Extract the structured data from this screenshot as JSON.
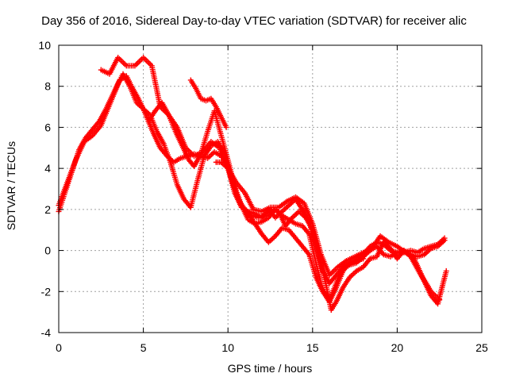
{
  "chart_data": {
    "type": "scatter",
    "title": "Day 356 of 2016, Sidereal Day-to-day VTEC variation (SDTVAR) for receiver alic",
    "xlabel": "GPS time / hours",
    "ylabel": "SDTVAR / TECUs",
    "xlim": [
      0,
      25
    ],
    "ylim": [
      -4,
      10
    ],
    "xticks": [
      "0",
      "5",
      "10",
      "15",
      "20",
      "25"
    ],
    "yticks": [
      "-4",
      "-2",
      "0",
      "2",
      "4",
      "6",
      "8",
      "10"
    ],
    "grid": true,
    "marker": "plus",
    "color": "#ff0000",
    "series": [
      {
        "x": [
          0.0,
          0.4,
          0.8,
          1.2,
          1.6,
          2.0,
          2.4,
          2.8,
          3.2,
          3.6,
          4.0,
          4.3,
          4.7,
          5.0,
          5.3,
          5.6,
          6.0,
          6.4,
          6.8,
          7.2,
          7.6,
          8.0,
          8.4,
          8.8,
          9.2,
          9.6,
          10.0,
          10.4,
          10.8,
          11.2,
          11.6,
          12.0,
          12.4,
          12.8,
          13.2,
          13.6,
          14.0,
          14.4,
          14.8,
          15.2,
          15.6,
          16.0,
          16.4,
          16.8,
          17.2,
          17.6,
          18.0,
          18.4,
          18.8,
          19.2,
          19.6,
          20.0,
          20.4,
          20.8,
          21.2,
          21.6,
          22.0,
          22.4,
          22.8
        ],
        "y": [
          1.9,
          2.9,
          3.9,
          4.9,
          5.5,
          5.9,
          6.3,
          6.9,
          7.6,
          8.3,
          8.5,
          8.0,
          7.4,
          6.9,
          6.3,
          5.7,
          5.0,
          4.6,
          4.3,
          4.5,
          4.6,
          4.7,
          4.6,
          4.5,
          4.8,
          4.6,
          4.2,
          3.0,
          2.2,
          1.5,
          1.3,
          1.4,
          1.6,
          2.0,
          1.7,
          1.5,
          1.3,
          1.2,
          0.8,
          -0.6,
          -1.9,
          -2.4,
          -1.6,
          -0.9,
          -0.7,
          -0.6,
          -0.3,
          0.0,
          0.2,
          -0.2,
          -0.3,
          -0.1,
          0.0,
          -0.2,
          -0.3,
          -0.2,
          0.1,
          0.2,
          0.5
        ]
      },
      {
        "x": [
          0.0,
          0.5,
          1.0,
          1.5,
          2.0,
          2.5,
          3.0,
          3.5,
          3.8,
          4.2,
          4.6,
          5.0,
          5.4,
          5.8,
          6.2,
          6.6,
          7.0,
          7.4,
          7.8,
          8.2,
          8.6,
          9.0,
          9.4,
          9.8,
          10.2,
          10.6,
          11.0,
          11.4,
          11.8,
          12.2,
          12.6,
          13.0,
          13.4,
          13.8,
          14.2,
          14.6,
          15.0,
          15.4,
          15.8,
          16.1,
          16.4,
          16.8,
          17.2,
          17.6,
          18.0,
          18.4,
          18.8,
          19.2,
          19.6,
          20.0,
          20.4,
          20.8,
          21.2,
          21.6,
          22.0,
          22.4,
          22.9
        ],
        "y": [
          2.2,
          3.3,
          4.4,
          5.3,
          5.6,
          6.1,
          7.1,
          8.1,
          8.6,
          8.0,
          7.2,
          6.9,
          6.6,
          5.8,
          5.2,
          4.3,
          3.2,
          2.5,
          2.1,
          3.4,
          4.6,
          5.1,
          5.3,
          4.7,
          3.5,
          2.5,
          2.0,
          1.7,
          1.6,
          1.7,
          2.0,
          1.9,
          1.2,
          1.6,
          1.9,
          1.6,
          1.0,
          -0.3,
          -1.7,
          -2.9,
          -2.5,
          -1.8,
          -1.3,
          -1.0,
          -0.8,
          -0.4,
          -0.3,
          0.4,
          0.1,
          -0.4,
          0.0,
          -0.3,
          -0.9,
          -1.5,
          -2.2,
          -2.6,
          -1.0
        ]
      },
      {
        "x": [
          2.5,
          3.0,
          3.5,
          4.0,
          4.5,
          5.0,
          5.5,
          6.0,
          6.5,
          7.0,
          7.5,
          8.0,
          8.5,
          9.0,
          9.5,
          10.0,
          10.5,
          11.0,
          11.5,
          12.0,
          12.5,
          13.0,
          13.5,
          14.0,
          14.5,
          15.0,
          15.5,
          16.0,
          16.5,
          17.0,
          17.5,
          18.0,
          18.5,
          19.0,
          19.5,
          20.0,
          20.5,
          21.0,
          21.5,
          22.0,
          22.5
        ],
        "y": [
          8.8,
          8.6,
          9.4,
          9.0,
          9.0,
          9.4,
          9.0,
          7.0,
          6.6,
          6.0,
          5.0,
          4.6,
          4.8,
          5.3,
          5.0,
          4.0,
          3.3,
          2.8,
          2.0,
          1.9,
          2.1,
          2.1,
          2.4,
          2.6,
          2.3,
          1.3,
          -0.2,
          -1.2,
          -0.8,
          -0.5,
          -0.3,
          -0.1,
          0.1,
          0.7,
          0.4,
          0.2,
          -0.1,
          -0.4,
          -1.3,
          -2.0,
          -2.4
        ]
      },
      {
        "x": [
          5.3,
          5.7,
          6.1,
          6.5,
          6.9,
          7.3,
          7.7,
          8.0,
          8.4,
          8.8,
          9.2,
          9.6,
          10.0,
          10.4,
          10.8,
          11.2,
          11.6,
          12.0,
          12.4,
          12.8,
          13.2,
          13.6,
          14.0,
          14.4,
          14.8,
          15.2,
          15.6,
          16.0,
          16.4,
          16.8,
          17.2,
          17.6,
          18.0,
          18.4,
          18.8,
          19.2,
          19.6,
          20.0,
          20.4,
          20.8,
          21.2,
          21.6,
          22.0,
          22.4,
          22.8
        ],
        "y": [
          6.3,
          6.8,
          7.2,
          6.6,
          5.8,
          5.1,
          4.4,
          4.1,
          4.7,
          5.8,
          6.8,
          5.6,
          4.4,
          3.1,
          2.2,
          1.8,
          1.3,
          0.8,
          0.4,
          0.7,
          1.1,
          1.0,
          0.6,
          0.2,
          -0.2,
          -1.3,
          -2.0,
          -2.5,
          -1.8,
          -1.0,
          -0.6,
          -0.4,
          -0.2,
          0.2,
          0.4,
          0.3,
          0.0,
          -0.1,
          -0.1,
          0.0,
          -0.1,
          0.1,
          0.2,
          0.3,
          0.6
        ]
      },
      {
        "x": [
          7.8,
          8.1,
          8.4,
          8.7,
          9.0,
          9.3,
          9.6,
          9.9
        ],
        "y": [
          8.3,
          7.9,
          7.4,
          7.3,
          7.4,
          7.0,
          6.5,
          6.0
        ]
      },
      {
        "x": [
          9.3,
          9.6,
          10.0,
          10.4,
          10.8,
          11.2,
          11.6,
          12.0,
          12.4,
          12.8,
          13.2,
          13.6,
          14.0,
          14.4,
          14.8,
          15.2,
          15.6,
          16.0,
          16.4,
          16.8,
          17.2,
          17.6,
          18.0
        ],
        "y": [
          4.3,
          4.3,
          4.0,
          2.8,
          2.1,
          1.9,
          1.8,
          1.6,
          2.0,
          1.6,
          1.9,
          2.2,
          2.5,
          2.0,
          1.4,
          0.2,
          -1.0,
          -1.6,
          -1.2,
          -0.8,
          -0.6,
          -0.5,
          -0.4
        ]
      }
    ]
  }
}
